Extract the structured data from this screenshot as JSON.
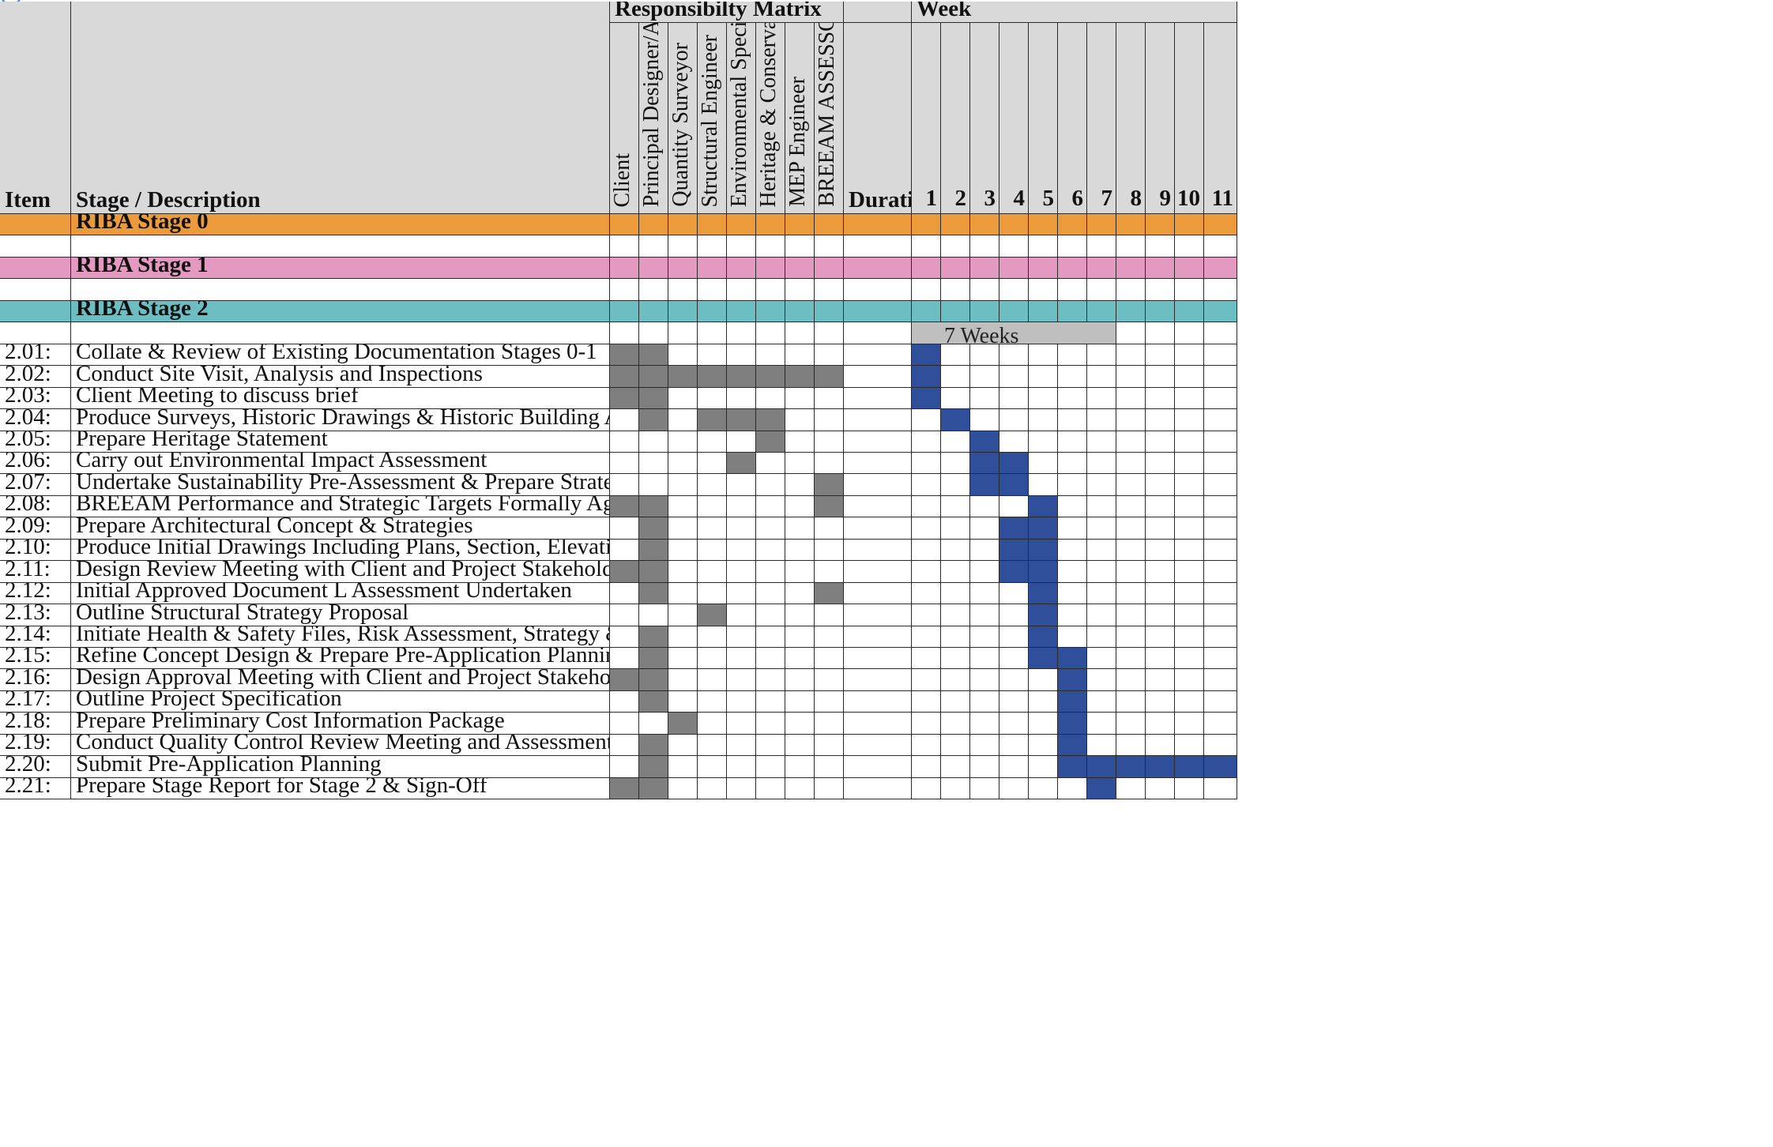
{
  "header": {
    "item": "Item",
    "stage_description": "Stage / Description",
    "responsibility_matrix": "Responsibilty Matrix",
    "duration": "Duration",
    "week": "Week"
  },
  "roles": [
    "Client",
    "Principal Designer/Architect",
    "Quantity Surveyor",
    "Structural Engineer",
    "Environmental Specialist",
    "Heritage & Conservation",
    "MEP Engineer",
    "BREEAM ASSESSOR"
  ],
  "weeks": [
    "1",
    "2",
    "3",
    "4",
    "5",
    "6",
    "7",
    "8",
    "9",
    "10",
    "11"
  ],
  "stages": [
    {
      "label": "RIBA Stage 0",
      "color": "#eb9b3c"
    },
    {
      "label": "RIBA Stage 1",
      "color": "#e49ac0"
    },
    {
      "label": "RIBA Stage 2",
      "color": "#6cbec2"
    }
  ],
  "span": {
    "label": "7 Weeks",
    "start_week": 1,
    "weeks": 7
  },
  "tasks": [
    {
      "item": "2.01:",
      "desc": "Collate & Review of Existing Documentation Stages 0-1",
      "roles": [
        0,
        1
      ],
      "weeks": [
        1
      ]
    },
    {
      "item": "2.02:",
      "desc": "Conduct Site Visit, Analysis and Inspections",
      "roles": [
        0,
        1,
        2,
        3,
        4,
        5,
        6,
        7
      ],
      "weeks": [
        1
      ]
    },
    {
      "item": "2.03:",
      "desc": "Client Meeting to discuss brief",
      "roles": [
        0,
        1
      ],
      "weeks": [
        1
      ]
    },
    {
      "item": "2.04:",
      "desc": "Produce Surveys, Historic Drawings & Historic Building Analysis",
      "roles": [
        1,
        3,
        4,
        5
      ],
      "weeks": [
        2
      ]
    },
    {
      "item": "2.05:",
      "desc": "Prepare Heritage Statement",
      "roles": [
        5
      ],
      "weeks": [
        3
      ]
    },
    {
      "item": "2.06:",
      "desc": "Carry out Environmental Impact Assessment",
      "roles": [
        4
      ],
      "weeks": [
        3,
        4
      ]
    },
    {
      "item": "2.07:",
      "desc": "Undertake Sustainability Pre-Assessment & Prepare Strategy",
      "roles": [
        7
      ],
      "weeks": [
        3,
        4
      ]
    },
    {
      "item": "2.08:",
      "desc": "BREEAM Performance and Strategic Targets Formally Agreed",
      "roles": [
        0,
        1,
        7
      ],
      "weeks": [
        5
      ]
    },
    {
      "item": "2.09:",
      "desc": "Prepare Architectural Concept & Strategies",
      "roles": [
        1
      ],
      "weeks": [
        4,
        5
      ]
    },
    {
      "item": "2.10:",
      "desc": "Produce Initial Drawings Including Plans, Section, Elevation",
      "roles": [
        1
      ],
      "weeks": [
        4,
        5
      ]
    },
    {
      "item": "2.11:",
      "desc": "Design Review Meeting with Client and Project Stakeholders",
      "roles": [
        0,
        1
      ],
      "weeks": [
        4,
        5
      ]
    },
    {
      "item": "2.12:",
      "desc": "Initial Approved Document L Assessment Undertaken",
      "roles": [
        1,
        7
      ],
      "weeks": [
        5
      ]
    },
    {
      "item": "2.13:",
      "desc": "Outline Structural Strategy Proposal",
      "roles": [
        3
      ],
      "weeks": [
        5
      ]
    },
    {
      "item": "2.14:",
      "desc": "Initiate Health & Safety Files, Risk Assessment, Strategy & Hazard Register",
      "roles": [
        1
      ],
      "weeks": [
        5
      ]
    },
    {
      "item": "2.15:",
      "desc": "Refine Concept Design & Prepare Pre-Application Planning Drawing Package",
      "roles": [
        1
      ],
      "weeks": [
        5,
        6
      ]
    },
    {
      "item": "2.16:",
      "desc": "Design Approval Meeting with Client and Project Stakeholders",
      "roles": [
        0,
        1
      ],
      "weeks": [
        6
      ]
    },
    {
      "item": "2.17:",
      "desc": "Outline Project Specification",
      "roles": [
        1
      ],
      "weeks": [
        6
      ]
    },
    {
      "item": "2.18:",
      "desc": "Prepare Preliminary Cost Information Package",
      "roles": [
        2
      ],
      "weeks": [
        6
      ]
    },
    {
      "item": "2.19:",
      "desc": "Conduct Quality Control Review Meeting and Assessment",
      "roles": [
        1
      ],
      "weeks": [
        6
      ]
    },
    {
      "item": "2.20:",
      "desc": "Submit Pre-Application Planning",
      "roles": [
        1
      ],
      "weeks": [
        6,
        7,
        8,
        9,
        10,
        11
      ]
    },
    {
      "item": "2.21:",
      "desc": "Prepare Stage Report for Stage 2 & Sign-Off",
      "roles": [
        0,
        1
      ],
      "weeks": [
        7
      ]
    }
  ],
  "colors": {
    "header": "#d9d9d9",
    "role_fill": "#7f7f7f",
    "week_fill": "#2f4f9a",
    "span_fill": "#bfbfbf"
  }
}
